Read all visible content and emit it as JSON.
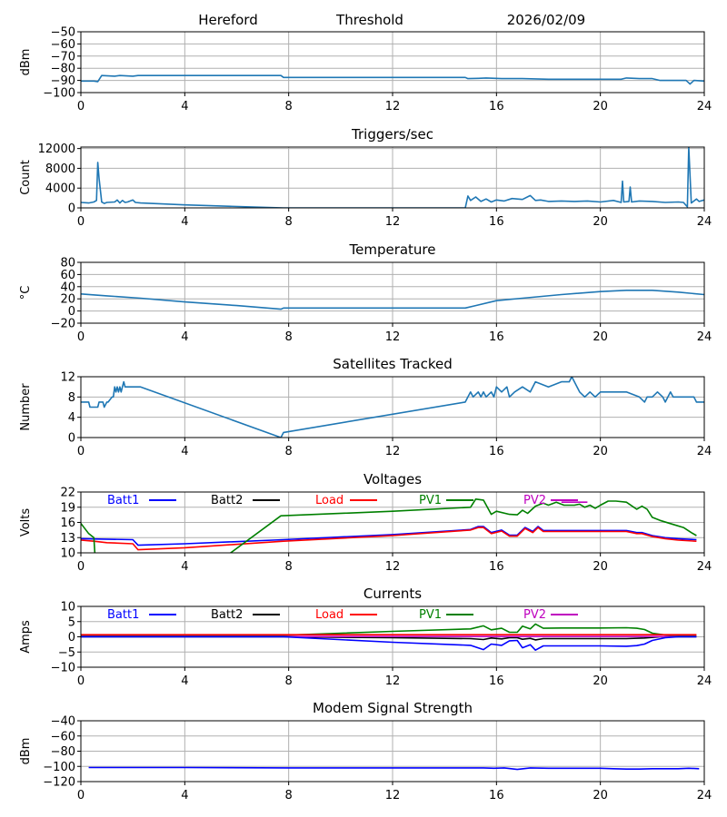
{
  "header": {
    "station": "Hereford",
    "figure": "Threshold",
    "date": "2026/02/09"
  },
  "colors": {
    "default_line": "#1f77b4",
    "grid": "#b0b0b0",
    "Batt1": "#0000ff",
    "Batt2": "#000000",
    "Load": "#ff0000",
    "PV1": "#008000",
    "PV2": "#bf00bf"
  },
  "chart_data": [
    {
      "id": "threshold",
      "type": "line",
      "title": "",
      "xlabel": "",
      "ylabel": "dBm",
      "xlim": [
        0,
        24
      ],
      "ylim": [
        -100,
        -50
      ],
      "xticks": [
        0,
        4,
        8,
        12,
        16,
        20,
        24
      ],
      "yticks": [
        -50,
        -60,
        -70,
        -80,
        -90,
        -100
      ],
      "ytick_labels": [
        "−50",
        "−60",
        "−70",
        "−80",
        "−90",
        "−100"
      ],
      "grid": true,
      "series": [
        {
          "name": "Threshold",
          "color_key": "default_line",
          "x": [
            0,
            0.5,
            0.65,
            0.8,
            1.3,
            1.5,
            2.0,
            2.2,
            7.7,
            7.8,
            14.8,
            14.9,
            15.3,
            15.6,
            16.2,
            17.0,
            18.0,
            19.0,
            20.0,
            20.8,
            21.0,
            21.5,
            22.0,
            22.3,
            23.0,
            23.3,
            23.45,
            23.6,
            24.0
          ],
          "y": [
            -90.5,
            -90.5,
            -91,
            -86,
            -86.5,
            -86,
            -86.5,
            -86,
            -86,
            -87.5,
            -87.5,
            -88.5,
            -88.3,
            -88,
            -88.5,
            -88.5,
            -89,
            -89,
            -89,
            -89,
            -88,
            -88.5,
            -88.5,
            -90,
            -90,
            -90,
            -93,
            -90,
            -90.5
          ]
        }
      ]
    },
    {
      "id": "triggers",
      "type": "line",
      "title": "Triggers/sec",
      "xlabel": "",
      "ylabel": "Count",
      "xlim": [
        0,
        24
      ],
      "ylim": [
        0,
        12300
      ],
      "xticks": [
        0,
        4,
        8,
        12,
        16,
        20,
        24
      ],
      "yticks": [
        0,
        4000,
        8000,
        12000
      ],
      "ytick_labels": [
        "0",
        "4000",
        "8000",
        "12000"
      ],
      "grid": true,
      "series": [
        {
          "name": "Triggers",
          "color_key": "default_line",
          "x": [
            0,
            0.3,
            0.5,
            0.6,
            0.65,
            0.7,
            0.8,
            0.9,
            1.0,
            1.3,
            1.4,
            1.5,
            1.6,
            1.7,
            1.8,
            2.0,
            2.1,
            2.3,
            4.0,
            7.8,
            14.8,
            14.9,
            15.0,
            15.2,
            15.4,
            15.6,
            15.8,
            16.0,
            16.3,
            16.6,
            17.0,
            17.3,
            17.5,
            17.7,
            18.0,
            18.5,
            19.0,
            19.5,
            20.0,
            20.5,
            20.8,
            20.85,
            20.9,
            21.1,
            21.15,
            21.2,
            21.5,
            22.0,
            22.5,
            23.0,
            23.2,
            23.35,
            23.4,
            23.5,
            23.7,
            23.8,
            24.0
          ],
          "y": [
            1100,
            1000,
            1200,
            1500,
            9200,
            6000,
            1200,
            900,
            1100,
            1200,
            1600,
            1000,
            1500,
            1100,
            1200,
            1600,
            1100,
            1000,
            600,
            0,
            0,
            2400,
            1500,
            2200,
            1300,
            1800,
            1200,
            1600,
            1400,
            1900,
            1700,
            2500,
            1500,
            1600,
            1300,
            1400,
            1300,
            1400,
            1200,
            1500,
            1100,
            5400,
            1200,
            1300,
            4200,
            1200,
            1400,
            1300,
            1100,
            1200,
            1100,
            200,
            12300,
            1000,
            1800,
            1300,
            1600
          ]
        }
      ]
    },
    {
      "id": "temperature",
      "type": "line",
      "title": "Temperature",
      "xlabel": "",
      "ylabel": "°C",
      "xlim": [
        0,
        24
      ],
      "ylim": [
        -20,
        80
      ],
      "xticks": [
        0,
        4,
        8,
        12,
        16,
        20,
        24
      ],
      "yticks": [
        -20,
        0,
        20,
        40,
        60,
        80
      ],
      "ytick_labels": [
        "−20",
        "0",
        "20",
        "40",
        "60",
        "80"
      ],
      "grid": true,
      "series": [
        {
          "name": "Temperature",
          "color_key": "default_line",
          "x": [
            0,
            1.0,
            2.3,
            4.0,
            6.0,
            7.7,
            7.8,
            14.8,
            15.2,
            16.0,
            17.0,
            18.5,
            20.0,
            21.0,
            22.0,
            23.0,
            24.0
          ],
          "y": [
            28,
            25,
            21,
            15,
            9,
            3,
            5,
            5,
            9,
            17,
            21,
            27,
            32,
            34,
            34,
            31,
            27
          ]
        }
      ]
    },
    {
      "id": "satellites",
      "type": "line",
      "title": "Satellites Tracked",
      "xlabel": "",
      "ylabel": "Number",
      "xlim": [
        0,
        24
      ],
      "ylim": [
        0,
        12
      ],
      "xticks": [
        0,
        4,
        8,
        12,
        16,
        20,
        24
      ],
      "yticks": [
        0,
        4,
        8,
        12
      ],
      "ytick_labels": [
        "0",
        "4",
        "8",
        "12"
      ],
      "grid": true,
      "series": [
        {
          "name": "Satellites",
          "color_key": "default_line",
          "x": [
            0,
            0.3,
            0.35,
            0.65,
            0.7,
            0.85,
            0.9,
            1.0,
            1.05,
            1.2,
            1.25,
            1.3,
            1.35,
            1.4,
            1.45,
            1.5,
            1.55,
            1.6,
            1.65,
            1.7,
            2.3,
            7.7,
            7.8,
            14.8,
            14.9,
            15.0,
            15.1,
            15.3,
            15.4,
            15.5,
            15.6,
            15.8,
            15.9,
            16.0,
            16.2,
            16.4,
            16.5,
            16.7,
            17.0,
            17.3,
            17.5,
            18.0,
            18.5,
            18.8,
            18.9,
            19.0,
            19.2,
            19.4,
            19.6,
            19.8,
            20.0,
            20.5,
            21.0,
            21.5,
            21.7,
            21.8,
            22.0,
            22.2,
            22.4,
            22.5,
            22.7,
            22.8,
            23.0,
            23.3,
            23.6,
            23.7,
            24.0
          ],
          "y": [
            7,
            7,
            6,
            6,
            7,
            7,
            6,
            7,
            7,
            8,
            8,
            10,
            9,
            10,
            9,
            10,
            9,
            10,
            11,
            10,
            10,
            0,
            1,
            7,
            8,
            9,
            8,
            9,
            8,
            9,
            8,
            9,
            8,
            10,
            9,
            10,
            8,
            9,
            10,
            9,
            11,
            10,
            11,
            11,
            12,
            11,
            9,
            8,
            9,
            8,
            9,
            9,
            9,
            8,
            7,
            8,
            8,
            9,
            8,
            7,
            9,
            8,
            8,
            8,
            8,
            7,
            7
          ]
        }
      ]
    },
    {
      "id": "voltages",
      "type": "line",
      "title": "Voltages",
      "xlabel": "",
      "ylabel": "Volts",
      "xlim": [
        0,
        24
      ],
      "ylim": [
        10,
        22
      ],
      "xticks": [
        0,
        4,
        8,
        12,
        16,
        20,
        24
      ],
      "yticks": [
        10,
        13,
        16,
        19,
        22
      ],
      "ytick_labels": [
        "10",
        "13",
        "16",
        "19",
        "22"
      ],
      "grid": true,
      "legend": {
        "placement": "top",
        "layout": "horizontal",
        "entries": [
          "Batt1",
          "Batt2",
          "Load",
          "PV1",
          "PV2"
        ]
      },
      "series": [
        {
          "name": "Batt1",
          "color_key": "Batt1",
          "x": [
            0,
            2.0,
            2.2,
            4.0,
            7.8,
            12.0,
            15.0,
            15.3,
            15.5,
            15.8,
            16.2,
            16.5,
            16.8,
            17.1,
            17.4,
            17.6,
            17.8,
            18.5,
            20.0,
            21.0,
            21.4,
            21.6,
            22.0,
            22.5,
            23.0,
            23.7
          ],
          "y": [
            12.8,
            12.6,
            11.5,
            11.8,
            12.6,
            13.6,
            14.6,
            15.2,
            15.2,
            14.0,
            14.5,
            13.5,
            13.5,
            15.0,
            14.2,
            15.2,
            14.4,
            14.4,
            14.4,
            14.4,
            14.0,
            14.0,
            13.4,
            13.0,
            12.8,
            12.6
          ]
        },
        {
          "name": "Load",
          "color_key": "Load",
          "x": [
            0,
            0.5,
            1.0,
            2.0,
            2.2,
            4.0,
            7.8,
            12.0,
            15.0,
            15.3,
            15.5,
            15.8,
            16.2,
            16.5,
            16.8,
            17.1,
            17.4,
            17.6,
            17.8,
            18.5,
            20.0,
            21.0,
            21.4,
            21.6,
            22.0,
            22.5,
            23.0,
            23.7
          ],
          "y": [
            12.5,
            12.3,
            12.0,
            11.8,
            10.6,
            11.0,
            12.3,
            13.4,
            14.5,
            15.0,
            15.0,
            13.8,
            14.3,
            13.3,
            13.3,
            14.8,
            14.0,
            15.0,
            14.2,
            14.2,
            14.2,
            14.2,
            13.8,
            13.8,
            13.2,
            12.8,
            12.5,
            12.3
          ]
        },
        {
          "name": "PV1",
          "color_key": "PV1",
          "x": [
            0,
            0.3,
            0.5,
            0.55,
            5.5,
            7.7,
            12.0,
            15.0,
            15.2,
            15.5,
            15.8,
            16.0,
            16.5,
            16.8,
            17.0,
            17.2,
            17.5,
            17.8,
            18.0,
            18.3,
            18.6,
            19.0,
            19.2,
            19.4,
            19.6,
            19.8,
            20.0,
            20.3,
            20.6,
            21.0,
            21.4,
            21.6,
            21.8,
            22.0,
            22.3,
            22.8,
            23.2,
            23.5,
            23.7
          ],
          "y": [
            15.8,
            13.8,
            13.0,
            9.0,
            9.0,
            17.3,
            18.2,
            19.0,
            20.6,
            20.4,
            17.6,
            18.2,
            17.6,
            17.5,
            18.4,
            17.8,
            19.2,
            19.8,
            19.4,
            20.0,
            19.4,
            19.4,
            19.6,
            19.0,
            19.4,
            18.8,
            19.4,
            20.2,
            20.2,
            20.0,
            18.6,
            19.2,
            18.6,
            17.0,
            16.4,
            15.6,
            15.0,
            14.0,
            13.4
          ]
        },
        {
          "name": "PV2",
          "color_key": "PV2",
          "x": [
            18.5,
            19.5
          ],
          "y": [
            20.0,
            20.0
          ]
        }
      ]
    },
    {
      "id": "currents",
      "type": "line",
      "title": "Currents",
      "xlabel": "",
      "ylabel": "Amps",
      "xlim": [
        0,
        24
      ],
      "ylim": [
        -10,
        10
      ],
      "xticks": [
        0,
        4,
        8,
        12,
        16,
        20,
        24
      ],
      "yticks": [
        -10,
        -5,
        0,
        5,
        10
      ],
      "ytick_labels": [
        "−10",
        "−5",
        "0",
        "5",
        "10"
      ],
      "grid": true,
      "legend": {
        "placement": "top",
        "layout": "horizontal",
        "entries": [
          "Batt1",
          "Batt2",
          "Load",
          "PV1",
          "PV2"
        ]
      },
      "series": [
        {
          "name": "PV1",
          "color_key": "PV1",
          "x": [
            0,
            7.8,
            12.0,
            15.0,
            15.5,
            15.8,
            16.2,
            16.5,
            16.8,
            17.0,
            17.3,
            17.5,
            17.8,
            18.5,
            20.0,
            21.0,
            21.4,
            21.7,
            22.0,
            22.5,
            23.0,
            23.7
          ],
          "y": [
            0.3,
            0.5,
            1.8,
            2.6,
            3.6,
            2.3,
            2.8,
            1.5,
            1.5,
            3.5,
            2.6,
            4.2,
            2.8,
            2.9,
            2.9,
            3.0,
            2.8,
            2.4,
            1.2,
            0.6,
            0.4,
            0.3
          ]
        },
        {
          "name": "Load",
          "color_key": "Load",
          "x": [
            0,
            23.7
          ],
          "y": [
            0.7,
            0.7
          ]
        },
        {
          "name": "Batt2",
          "color_key": "Batt2",
          "x": [
            0,
            7.8,
            12.0,
            15.0,
            15.5,
            15.8,
            16.2,
            16.5,
            16.8,
            17.0,
            17.3,
            17.5,
            17.8,
            21.0,
            21.7,
            22.3,
            23.7
          ],
          "y": [
            0,
            0,
            -0.3,
            -0.6,
            -0.9,
            -0.4,
            -0.7,
            -0.3,
            -0.3,
            -0.8,
            -0.5,
            -1.0,
            -0.6,
            -0.6,
            -0.4,
            0,
            0
          ]
        },
        {
          "name": "PV2",
          "color_key": "PV2",
          "x": [
            0,
            23.7
          ],
          "y": [
            0.1,
            0.1
          ]
        },
        {
          "name": "Batt1",
          "color_key": "Batt1",
          "x": [
            0,
            7.8,
            12.0,
            15.0,
            15.5,
            15.8,
            16.2,
            16.5,
            16.8,
            17.0,
            17.3,
            17.5,
            17.8,
            18.5,
            20.0,
            21.0,
            21.4,
            21.7,
            22.0,
            22.5,
            23.0,
            23.7
          ],
          "y": [
            0,
            0,
            -1.8,
            -2.8,
            -4.2,
            -2.4,
            -2.8,
            -1.3,
            -1.2,
            -3.6,
            -2.6,
            -4.4,
            -3.0,
            -3.0,
            -3.0,
            -3.1,
            -2.9,
            -2.4,
            -1.2,
            -0.3,
            0,
            0
          ]
        }
      ]
    },
    {
      "id": "modem",
      "type": "line",
      "title": "Modem Signal Strength",
      "xlabel": "",
      "ylabel": "dBm",
      "xlim": [
        0,
        24
      ],
      "ylim": [
        -120,
        -40
      ],
      "xticks": [
        0,
        4,
        8,
        12,
        16,
        20,
        24
      ],
      "yticks": [
        -40,
        -60,
        -80,
        -100,
        -120
      ],
      "ytick_labels": [
        "−40",
        "−60",
        "−80",
        "−100",
        "−120"
      ],
      "grid": true,
      "series": [
        {
          "name": "Modem",
          "color_key": "Batt1",
          "x": [
            0.3,
            4.0,
            8.0,
            12.0,
            15.5,
            15.9,
            16.3,
            16.8,
            17.3,
            18.0,
            20.0,
            20.5,
            21.0,
            21.5,
            22.0,
            23.0,
            23.4,
            23.8
          ],
          "y": [
            -101.5,
            -101.5,
            -102,
            -102,
            -102,
            -102.5,
            -102,
            -104,
            -102,
            -102.5,
            -102.5,
            -103,
            -103.5,
            -103.5,
            -103,
            -103,
            -102.5,
            -103
          ]
        }
      ]
    }
  ]
}
